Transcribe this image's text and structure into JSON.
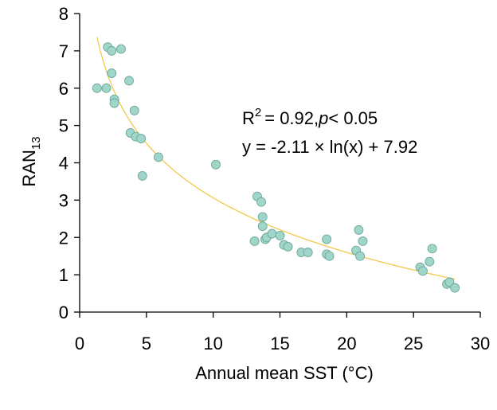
{
  "chart_data": {
    "type": "scatter",
    "title": "",
    "xlabel": "Annual mean SST (°C)",
    "ylabel": "RAN",
    "ylabel_sub": "13",
    "xlim": [
      0,
      30
    ],
    "ylim": [
      0,
      8
    ],
    "xticks": [
      0,
      5,
      10,
      15,
      20,
      25,
      30
    ],
    "yticks": [
      0,
      1,
      2,
      3,
      4,
      5,
      6,
      7,
      8
    ],
    "colors": {
      "points": "#9fd6c9",
      "point_stroke": "#6fa79a",
      "fit": "#f2c84b",
      "axis": "#000000"
    },
    "points": [
      [
        1.3,
        6.0
      ],
      [
        2.0,
        6.0
      ],
      [
        2.1,
        7.1
      ],
      [
        2.4,
        7.0
      ],
      [
        2.4,
        6.4
      ],
      [
        2.6,
        5.7
      ],
      [
        2.6,
        5.6
      ],
      [
        3.1,
        7.05
      ],
      [
        3.7,
        6.2
      ],
      [
        3.8,
        4.8
      ],
      [
        4.1,
        5.4
      ],
      [
        4.2,
        4.7
      ],
      [
        4.6,
        4.65
      ],
      [
        4.7,
        3.65
      ],
      [
        5.9,
        4.15
      ],
      [
        10.2,
        3.95
      ],
      [
        13.1,
        1.9
      ],
      [
        13.3,
        3.1
      ],
      [
        13.6,
        2.95
      ],
      [
        13.7,
        2.55
      ],
      [
        13.7,
        2.3
      ],
      [
        13.9,
        1.95
      ],
      [
        14.0,
        2.0
      ],
      [
        14.4,
        2.1
      ],
      [
        15.0,
        2.05
      ],
      [
        15.3,
        1.8
      ],
      [
        15.6,
        1.75
      ],
      [
        16.6,
        1.6
      ],
      [
        17.1,
        1.6
      ],
      [
        18.5,
        1.95
      ],
      [
        18.5,
        1.55
      ],
      [
        18.7,
        1.5
      ],
      [
        20.7,
        1.65
      ],
      [
        20.9,
        2.2
      ],
      [
        21.0,
        1.5
      ],
      [
        21.2,
        1.9
      ],
      [
        25.5,
        1.2
      ],
      [
        25.7,
        1.1
      ],
      [
        26.2,
        1.35
      ],
      [
        26.4,
        1.7
      ],
      [
        27.5,
        0.75
      ],
      [
        27.7,
        0.8
      ],
      [
        28.1,
        0.65
      ]
    ],
    "fit": {
      "equation": "y = -2.11 × ln(x) + 7.92",
      "a": -2.11,
      "b": 7.92,
      "x_range": [
        1.3,
        28.1
      ]
    },
    "annotations": {
      "r2_symbol": "R",
      "r2_sup": "2",
      "r2_value": "= 0.92,",
      "p_symbol": "p",
      "p_value": "< 0.05",
      "equation": "y = -2.11 × ln(x) + 7.92"
    }
  }
}
